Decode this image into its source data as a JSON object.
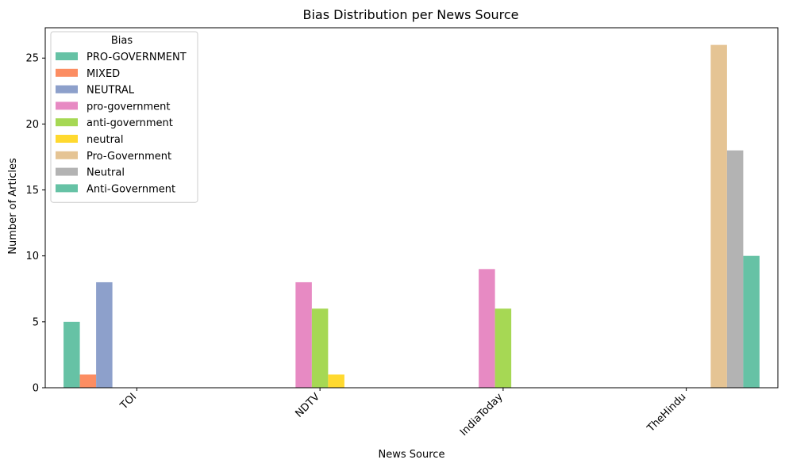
{
  "chart_data": {
    "type": "bar",
    "title": "Bias Distribution per News Source",
    "xlabel": "News Source",
    "ylabel": "Number of Articles",
    "categories": [
      "TOI",
      "NDTV",
      "IndiaToday",
      "TheHindu"
    ],
    "ylim": [
      0,
      27.3
    ],
    "yticks": [
      0,
      5,
      10,
      15,
      20,
      25
    ],
    "grid": false,
    "legend": {
      "title": "Bias",
      "placement": "top-left"
    },
    "series": [
      {
        "name": "PRO-GOVERNMENT",
        "color": "#66c2a5",
        "values": [
          5,
          0,
          0,
          0
        ]
      },
      {
        "name": "MIXED",
        "color": "#fc8d62",
        "values": [
          1,
          0,
          0,
          0
        ]
      },
      {
        "name": "NEUTRAL",
        "color": "#8da0cb",
        "values": [
          8,
          0,
          0,
          0
        ]
      },
      {
        "name": "pro-government",
        "color": "#e78ac3",
        "values": [
          0,
          8,
          9,
          0
        ]
      },
      {
        "name": "anti-government",
        "color": "#a6d854",
        "values": [
          0,
          6,
          6,
          0
        ]
      },
      {
        "name": "neutral",
        "color": "#ffd92f",
        "values": [
          0,
          1,
          0,
          0
        ]
      },
      {
        "name": "Pro-Government",
        "color": "#e5c494",
        "values": [
          0,
          0,
          0,
          26
        ]
      },
      {
        "name": "Neutral",
        "color": "#b3b3b3",
        "values": [
          0,
          0,
          0,
          18
        ]
      },
      {
        "name": "Anti-Government",
        "color": "#66c2a5",
        "values": [
          0,
          0,
          0,
          10
        ]
      }
    ]
  }
}
